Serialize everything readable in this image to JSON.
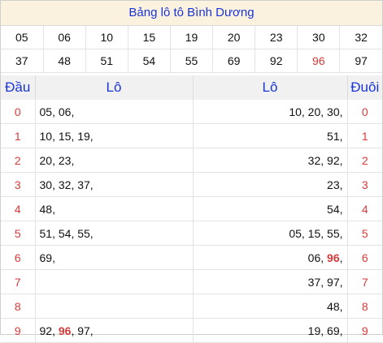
{
  "title": "Bảng lô tô Bình Dương",
  "numbers_row1": [
    "05",
    "06",
    "10",
    "15",
    "19",
    "20",
    "23",
    "30",
    "32"
  ],
  "numbers_row2": [
    "37",
    "48",
    "51",
    "54",
    "55",
    "69",
    "92",
    "96",
    "97"
  ],
  "highlight_number": "96",
  "headers": {
    "dau": "Đầu",
    "lo_left": "Lô",
    "lo_right": "Lô",
    "duoi": "Đuôi"
  },
  "rows": [
    {
      "dau": "0",
      "lo": [
        "05",
        "06"
      ],
      "lo_duoi": [
        "10",
        "20",
        "30"
      ],
      "duoi": "0"
    },
    {
      "dau": "1",
      "lo": [
        "10",
        "15",
        "19"
      ],
      "lo_duoi": [
        "51"
      ],
      "duoi": "1"
    },
    {
      "dau": "2",
      "lo": [
        "20",
        "23"
      ],
      "lo_duoi": [
        "32",
        "92"
      ],
      "duoi": "2"
    },
    {
      "dau": "3",
      "lo": [
        "30",
        "32",
        "37"
      ],
      "lo_duoi": [
        "23"
      ],
      "duoi": "3"
    },
    {
      "dau": "4",
      "lo": [
        "48"
      ],
      "lo_duoi": [
        "54"
      ],
      "duoi": "4"
    },
    {
      "dau": "5",
      "lo": [
        "51",
        "54",
        "55"
      ],
      "lo_duoi": [
        "05",
        "15",
        "55"
      ],
      "duoi": "5"
    },
    {
      "dau": "6",
      "lo": [
        "69"
      ],
      "lo_duoi": [
        "06",
        "96"
      ],
      "duoi": "6"
    },
    {
      "dau": "7",
      "lo": [],
      "lo_duoi": [
        "37",
        "97"
      ],
      "duoi": "7"
    },
    {
      "dau": "8",
      "lo": [],
      "lo_duoi": [
        "48"
      ],
      "duoi": "8"
    },
    {
      "dau": "9",
      "lo": [
        "92",
        "96",
        "97"
      ],
      "lo_duoi": [
        "19",
        "69"
      ],
      "duoi": "9"
    }
  ],
  "colors": {
    "title": "#1a35d6",
    "highlight": "#d93a3a",
    "title_bg": "#fbf1df",
    "header_bg": "#f1f1f1"
  }
}
